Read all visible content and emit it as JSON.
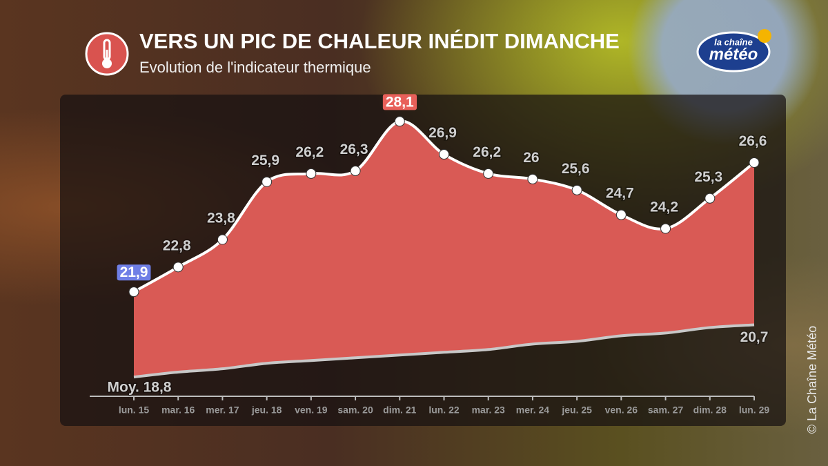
{
  "header": {
    "title": "VERS UN PIC DE CHALEUR INÉDIT DIMANCHE",
    "subtitle": "Evolution de l'indicateur thermique"
  },
  "logo": {
    "top": "la chaîne",
    "bottom": "météo"
  },
  "credit": "© La Chaîne Météo",
  "chart_data": {
    "type": "area",
    "categories": [
      "lun. 15",
      "mar. 16",
      "mer. 17",
      "jeu. 18",
      "ven. 19",
      "sam. 20",
      "dim. 21",
      "lun. 22",
      "mar. 23",
      "mer. 24",
      "jeu. 25",
      "ven. 26",
      "sam. 27",
      "dim. 28",
      "lun. 29"
    ],
    "series": [
      {
        "name": "Indicateur thermique",
        "color": "#d95a55",
        "values": [
          21.9,
          22.8,
          23.8,
          25.9,
          26.2,
          26.3,
          28.1,
          26.9,
          26.2,
          26,
          25.6,
          24.7,
          24.2,
          25.3,
          26.6
        ],
        "value_labels": [
          "21,9",
          "22,8",
          "23,8",
          "25,9",
          "26,2",
          "26,3",
          "28,1",
          "26,9",
          "26,2",
          "26",
          "25,6",
          "24,7",
          "24,2",
          "25,3",
          "26,6"
        ],
        "min_label_color": "#6f7fe6",
        "max_label_color": "#e8605a"
      },
      {
        "name": "Moyenne",
        "color": "#c8c8c8",
        "values": [
          18.8,
          18.98,
          19.1,
          19.3,
          19.4,
          19.5,
          19.6,
          19.7,
          19.8,
          20.0,
          20.1,
          20.3,
          20.4,
          20.6,
          20.7
        ],
        "value_labels": [
          "Moy. 18,8",
          null,
          null,
          null,
          null,
          null,
          null,
          null,
          null,
          null,
          null,
          null,
          null,
          null,
          "20,7"
        ]
      }
    ],
    "ylim": [
      18.1,
      29.4
    ]
  }
}
